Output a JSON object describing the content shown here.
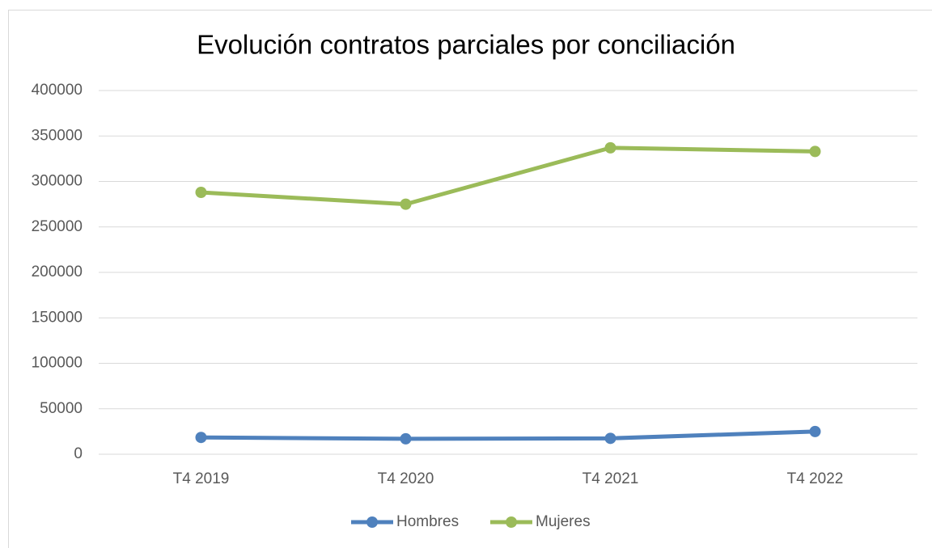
{
  "chart_data": {
    "type": "line",
    "title": "Evolución contratos parciales por conciliación",
    "categories": [
      "T4 2019",
      "T4 2020",
      "T4 2021",
      "T4 2022"
    ],
    "series": [
      {
        "name": "Hombres",
        "color": "#4f81bd",
        "values": [
          18500,
          17000,
          17500,
          25000
        ]
      },
      {
        "name": "Mujeres",
        "color": "#9bbb59",
        "values": [
          288000,
          275000,
          337000,
          333000
        ]
      }
    ],
    "ylim": [
      0,
      400000
    ],
    "yticks": [
      0,
      50000,
      100000,
      150000,
      200000,
      250000,
      300000,
      350000,
      400000
    ],
    "grid": true,
    "legend": "bottom"
  }
}
